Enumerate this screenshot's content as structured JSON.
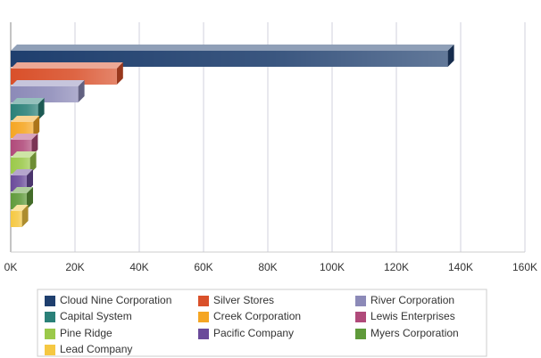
{
  "chart_data": {
    "type": "bar",
    "orientation": "horizontal",
    "categories": [
      "Cloud Nine Corporation",
      "Silver Stores",
      "River Corporation",
      "Capital System",
      "Creek Corporation",
      "Lewis Enterprises",
      "Pine Ridge",
      "Pacific Company",
      "Myers Corporation",
      "Lead Company"
    ],
    "values": [
      136000,
      33000,
      21000,
      8500,
      7000,
      6500,
      6000,
      5000,
      5000,
      3500
    ],
    "colors": [
      "#1f3f6e",
      "#d9502a",
      "#8c8ab8",
      "#2a8078",
      "#f5a623",
      "#b04a7a",
      "#9bc94a",
      "#6a4a9a",
      "#5f9a3a",
      "#f5c842"
    ],
    "xlim": [
      0,
      160000
    ],
    "xticks": [
      {
        "value": 0,
        "label": "0K"
      },
      {
        "value": 20000,
        "label": "20K"
      },
      {
        "value": 40000,
        "label": "40K"
      },
      {
        "value": 60000,
        "label": "60K"
      },
      {
        "value": 80000,
        "label": "80K"
      },
      {
        "value": 100000,
        "label": "100K"
      },
      {
        "value": 120000,
        "label": "120K"
      },
      {
        "value": 140000,
        "label": "140K"
      },
      {
        "value": 160000,
        "label": "160K"
      }
    ],
    "grid": true
  }
}
